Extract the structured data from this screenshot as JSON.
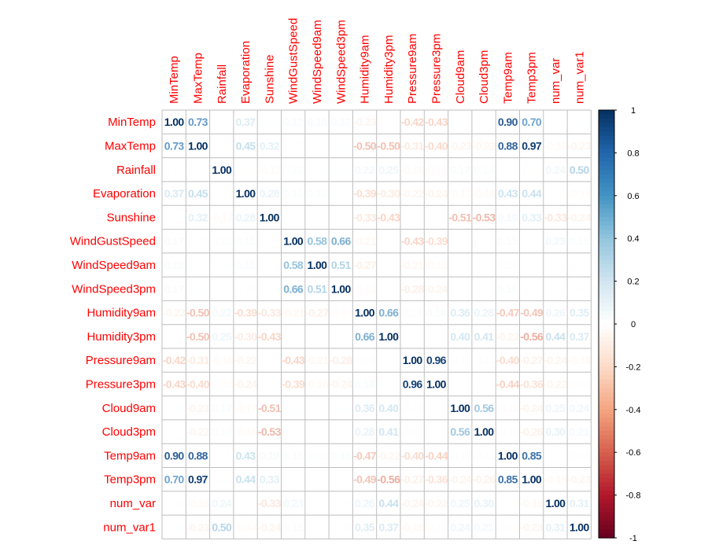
{
  "chart_data": {
    "type": "heatmap",
    "title": "",
    "variables": [
      "MinTemp",
      "MaxTemp",
      "Rainfall",
      "Evaporation",
      "Sunshine",
      "WindGustSpeed",
      "WindSpeed9am",
      "WindSpeed3pm",
      "Humidity9am",
      "Humidity3pm",
      "Pressure9am",
      "Pressure3pm",
      "Cloud9am",
      "Cloud3pm",
      "Temp9am",
      "Temp3pm",
      "num_var",
      "num_var1"
    ],
    "values": [
      [
        1.0,
        0.73,
        0.1,
        0.37,
        0.06,
        0.17,
        0.18,
        0.17,
        -0.23,
        0.0,
        -0.42,
        -0.43,
        0.04,
        0.03,
        0.9,
        0.7,
        0.08,
        0.06
      ],
      [
        0.73,
        1.0,
        -0.07,
        0.45,
        0.32,
        0.07,
        0.02,
        0.05,
        -0.5,
        -0.5,
        -0.31,
        -0.4,
        -0.23,
        -0.22,
        0.88,
        0.97,
        -0.16,
        -0.23
      ],
      [
        0.1,
        -0.07,
        1.0,
        -0.04,
        -0.17,
        0.13,
        0.09,
        0.06,
        0.22,
        0.25,
        -0.16,
        -0.12,
        0.17,
        0.14,
        0.01,
        -0.08,
        0.24,
        0.5
      ],
      [
        0.37,
        0.45,
        -0.04,
        1.0,
        0.28,
        0.15,
        0.15,
        0.1,
        -0.39,
        -0.3,
        -0.22,
        -0.24,
        -0.17,
        -0.16,
        0.43,
        0.44,
        -0.09,
        -0.14
      ],
      [
        0.06,
        0.32,
        -0.17,
        0.28,
        1.0,
        -0.03,
        0.01,
        0.03,
        -0.33,
        -0.43,
        0.03,
        -0.01,
        -0.51,
        -0.53,
        0.19,
        0.33,
        -0.33,
        -0.24
      ],
      [
        0.17,
        0.07,
        0.13,
        0.15,
        -0.03,
        1.0,
        0.58,
        0.66,
        -0.21,
        -0.03,
        -0.43,
        -0.39,
        0.06,
        0.07,
        0.15,
        0.03,
        0.23,
        0.15
      ],
      [
        0.18,
        0.02,
        0.09,
        0.15,
        0.01,
        0.58,
        1.0,
        0.51,
        -0.27,
        -0.04,
        -0.21,
        -0.16,
        0.02,
        0.03,
        0.13,
        0.0,
        0.09,
        0.1
      ],
      [
        0.17,
        0.05,
        0.06,
        0.1,
        0.03,
        0.66,
        0.51,
        1.0,
        -0.14,
        0.02,
        -0.28,
        -0.24,
        0.05,
        0.02,
        0.16,
        0.01,
        0.09,
        0.08
      ],
      [
        -0.23,
        -0.5,
        0.22,
        -0.39,
        -0.33,
        -0.21,
        -0.27,
        -0.14,
        1.0,
        0.66,
        0.13,
        0.18,
        0.36,
        0.28,
        -0.47,
        -0.49,
        0.26,
        0.35
      ],
      [
        0.0,
        -0.5,
        0.25,
        -0.3,
        -0.43,
        -0.03,
        -0.04,
        0.02,
        0.66,
        1.0,
        -0.03,
        0.05,
        0.4,
        0.41,
        -0.22,
        -0.56,
        0.44,
        0.37
      ],
      [
        -0.42,
        -0.31,
        -0.16,
        -0.22,
        0.03,
        -0.43,
        -0.21,
        -0.28,
        0.13,
        -0.03,
        1.0,
        0.96,
        -0.1,
        -0.11,
        -0.4,
        -0.27,
        -0.24,
        -0.18
      ],
      [
        -0.43,
        -0.4,
        -0.12,
        -0.24,
        -0.01,
        -0.39,
        -0.16,
        -0.24,
        0.18,
        0.05,
        0.96,
        1.0,
        -0.04,
        -0.05,
        -0.44,
        -0.36,
        -0.22,
        -0.1
      ],
      [
        0.04,
        -0.23,
        0.17,
        -0.17,
        -0.51,
        0.06,
        0.02,
        0.05,
        0.36,
        0.4,
        -0.1,
        -0.04,
        1.0,
        0.56,
        -0.12,
        -0.24,
        0.25,
        0.24
      ],
      [
        0.03,
        -0.22,
        0.14,
        -0.16,
        -0.53,
        0.07,
        0.03,
        0.02,
        0.28,
        0.41,
        -0.11,
        -0.05,
        0.56,
        1.0,
        -0.11,
        -0.26,
        0.3,
        0.21
      ],
      [
        0.9,
        0.88,
        0.01,
        0.43,
        0.19,
        0.15,
        0.13,
        0.16,
        -0.47,
        -0.22,
        -0.4,
        -0.44,
        -0.12,
        -0.11,
        1.0,
        0.85,
        -0.04,
        -0.1
      ],
      [
        0.7,
        0.97,
        -0.08,
        0.44,
        0.33,
        0.03,
        0.0,
        0.01,
        -0.49,
        -0.56,
        -0.27,
        -0.36,
        -0.24,
        -0.26,
        0.85,
        1.0,
        -0.19,
        -0.23
      ],
      [
        0.08,
        -0.16,
        0.24,
        -0.09,
        -0.33,
        0.23,
        0.09,
        0.09,
        0.26,
        0.44,
        -0.24,
        -0.22,
        0.25,
        0.3,
        -0.04,
        -0.19,
        1.0,
        0.31
      ],
      [
        0.06,
        -0.23,
        0.5,
        -0.14,
        -0.24,
        0.15,
        0.1,
        0.08,
        0.35,
        0.37,
        -0.18,
        -0.1,
        0.24,
        0.21,
        -0.1,
        -0.23,
        0.31,
        1.0
      ]
    ],
    "color_scale": {
      "range": [
        -1,
        1
      ],
      "ticks": [
        "1",
        "0.8",
        "0.6",
        "0.4",
        "0.2",
        "0",
        "-0.2",
        "-0.4",
        "-0.6",
        "-0.8",
        "-1"
      ],
      "colors": [
        "#67001F",
        "#B2182B",
        "#D6604D",
        "#F4A582",
        "#FDDBC7",
        "#FFFFFF",
        "#D1E5F0",
        "#92C5DE",
        "#4393C3",
        "#2166AC",
        "#053061"
      ]
    },
    "label_color": "#FF0000",
    "grid": true,
    "legend_position": "right"
  }
}
